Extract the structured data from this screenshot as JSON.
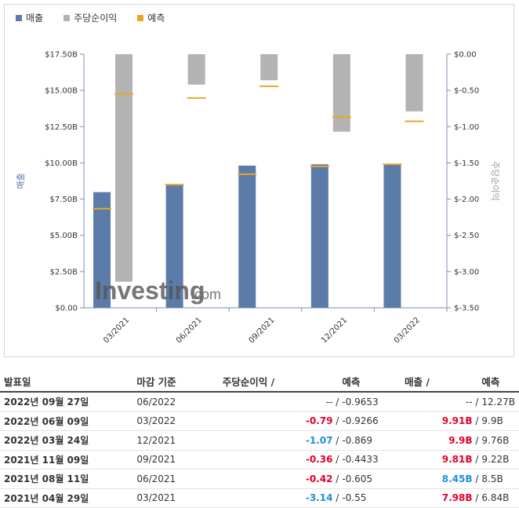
{
  "legend": [
    {
      "label": "매출",
      "color": "#5b7ba8"
    },
    {
      "label": "주당순이익",
      "color": "#b3b3b3"
    },
    {
      "label": "예측",
      "color": "#e9a824"
    }
  ],
  "watermark": {
    "brand": "Investing",
    "suffix": ".com"
  },
  "chart_data": {
    "type": "bar",
    "categories": [
      "03/2021",
      "06/2021",
      "09/2021",
      "12/2021",
      "03/2022"
    ],
    "ylabel_left": "매출",
    "ylabel_right": "주당순이익",
    "left_axis": {
      "min": 0,
      "max": 17.5,
      "ticks": [
        "$0.00",
        "$2.50B",
        "$5.00B",
        "$7.50B",
        "$10.00B",
        "$12.50B",
        "$15.00B",
        "$17.50B"
      ]
    },
    "right_axis": {
      "min": -3.5,
      "max": 0,
      "ticks": [
        "$-3.50",
        "$-3.00",
        "$-2.50",
        "$-2.00",
        "$-1.50",
        "$-1.00",
        "$-0.50",
        "$0.00"
      ]
    },
    "series": [
      {
        "name": "매출",
        "axis": "left",
        "values": [
          7.98,
          8.45,
          9.81,
          9.9,
          9.91
        ],
        "forecast": [
          6.84,
          8.5,
          9.22,
          9.76,
          9.9
        ]
      },
      {
        "name": "주당순이익",
        "axis": "right",
        "values": [
          -3.14,
          -0.42,
          -0.36,
          -1.07,
          -0.79
        ],
        "forecast": [
          -0.55,
          -0.605,
          -0.4433,
          -0.869,
          -0.9266
        ]
      }
    ],
    "grid": false,
    "legend_position": "top-left"
  },
  "table": {
    "headers": {
      "date": "발표일",
      "period": "마감 기준",
      "eps": "주당순이익",
      "eps_fc": "예측",
      "rev": "매출",
      "rev_fc": "예측",
      "slash": "/"
    },
    "rows": [
      {
        "date": "2022년 09월 27일",
        "period": "06/2022",
        "eps": "--",
        "eps_class": "",
        "eps_fc": "-0.9653",
        "rev": "--",
        "rev_class": "",
        "rev_fc": "12.27B"
      },
      {
        "date": "2022년 06월 09일",
        "period": "03/2022",
        "eps": "-0.79",
        "eps_class": "neg",
        "eps_fc": "-0.9266",
        "rev": "9.91B",
        "rev_class": "neg",
        "rev_fc": "9.9B"
      },
      {
        "date": "2022년 03월 24일",
        "period": "12/2021",
        "eps": "-1.07",
        "eps_class": "pos",
        "eps_fc": "-0.869",
        "rev": "9.9B",
        "rev_class": "neg",
        "rev_fc": "9.76B"
      },
      {
        "date": "2021년 11월 09일",
        "period": "09/2021",
        "eps": "-0.36",
        "eps_class": "neg",
        "eps_fc": "-0.4433",
        "rev": "9.81B",
        "rev_class": "neg",
        "rev_fc": "9.22B"
      },
      {
        "date": "2021년 08월 11일",
        "period": "06/2021",
        "eps": "-0.42",
        "eps_class": "neg",
        "eps_fc": "-0.605",
        "rev": "8.45B",
        "rev_class": "pos",
        "rev_fc": "8.5B"
      },
      {
        "date": "2021년 04월 29일",
        "period": "03/2021",
        "eps": "-3.14",
        "eps_class": "pos",
        "eps_fc": "-0.55",
        "rev": "7.98B",
        "rev_class": "neg",
        "rev_fc": "6.84B"
      }
    ]
  }
}
